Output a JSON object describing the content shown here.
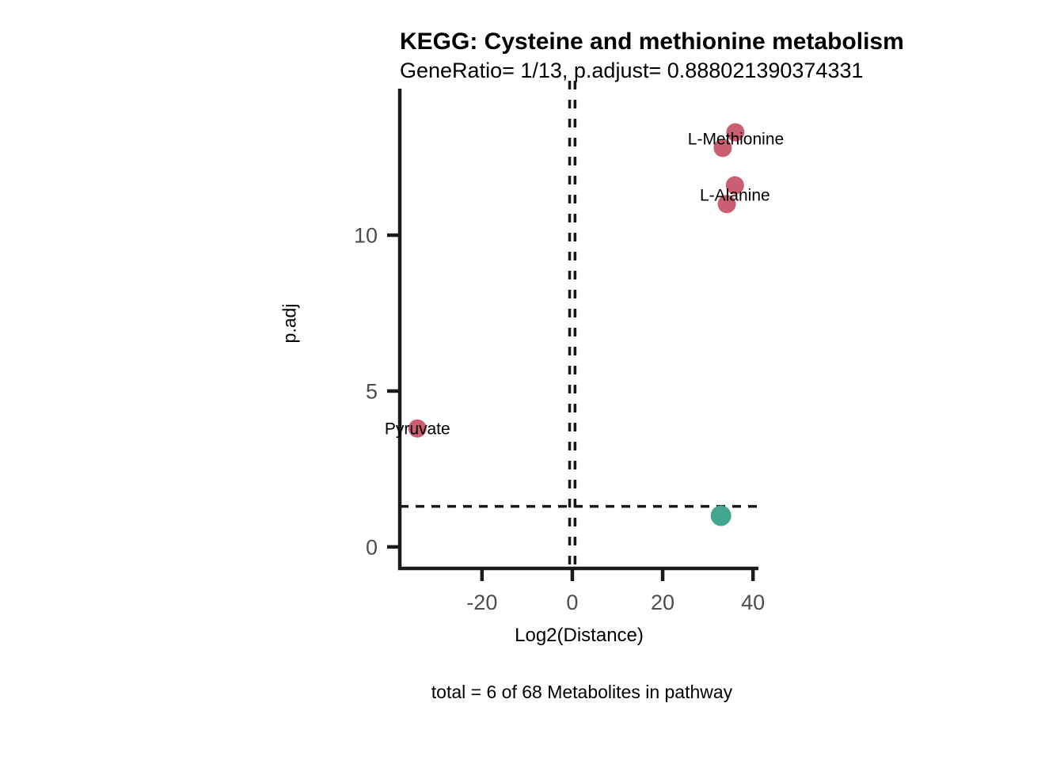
{
  "figure": {
    "title": "KEGG: Cysteine and methionine metabolism",
    "subtitle": "GeneRatio= 1/13, p.adjust= 0.888021390374331",
    "xlabel": "Log2(Distance)",
    "ylabel": "p.adj",
    "caption": "total = 6 of 68 Metabolites in pathway"
  },
  "colors": {
    "significant_point": "#CB5E70",
    "nonsignificant_point": "#45A68F",
    "axis": "#1a1a1a",
    "tick_label": "#4d4d4d",
    "background": "#ffffff"
  },
  "chart_data": {
    "type": "scatter",
    "title": "KEGG: Cysteine and methionine metabolism",
    "subtitle": "GeneRatio= 1/13, p.adjust= 0.888021390374331",
    "xlabel": "Log2(Distance)",
    "ylabel": "p.adj",
    "caption": "total = 6 of 68 Metabolites in pathway",
    "xlim": [
      -38.2,
      41.2
    ],
    "ylim": [
      -0.69,
      14.7
    ],
    "xticks": [
      -20,
      0,
      20,
      40
    ],
    "yticks": [
      0,
      5,
      10
    ],
    "grid": false,
    "legend_position": "none",
    "hline": {
      "y": 1.3,
      "style": "dashed"
    },
    "vlines": [
      {
        "x": -0.6,
        "style": "dashed"
      },
      {
        "x": 0.6,
        "style": "dashed"
      }
    ],
    "series": [
      {
        "name": "significant",
        "color": "#CB5E70",
        "r": 11.5,
        "points": [
          {
            "x": 36.1,
            "y": 13.3
          },
          {
            "x": 33.3,
            "y": 12.8
          },
          {
            "x": 36.0,
            "y": 11.6
          },
          {
            "x": 34.2,
            "y": 11.0
          },
          {
            "x": -34.3,
            "y": 3.8
          }
        ]
      },
      {
        "name": "not-significant",
        "color": "#45A68F",
        "r": 13,
        "points": [
          {
            "x": 32.9,
            "y": 1.0
          }
        ]
      }
    ],
    "point_labels": [
      {
        "text": "L-Methionine",
        "x": 36.2,
        "y": 13.1
      },
      {
        "text": "L-Alanine",
        "x": 36.0,
        "y": 11.3
      },
      {
        "text": "Pyruvate",
        "x": -34.3,
        "y": 3.8
      }
    ]
  }
}
